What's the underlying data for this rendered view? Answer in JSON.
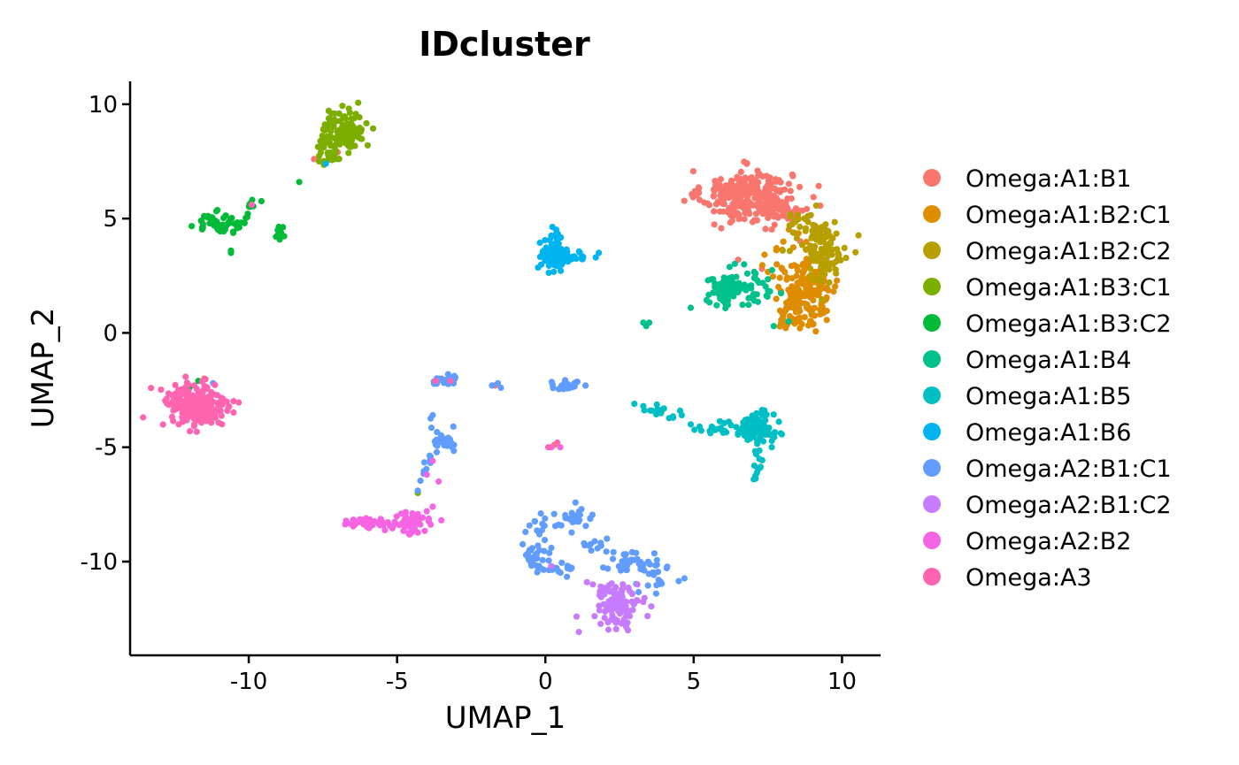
{
  "chart_data": {
    "type": "scatter",
    "title": "IDcluster",
    "xlabel": "UMAP_1",
    "ylabel": "UMAP_2",
    "xlim": [
      -14.0,
      11.3
    ],
    "ylim": [
      -14.1,
      11.0
    ],
    "xticks": [
      -10,
      -5,
      0,
      5,
      10
    ],
    "xtick_labels": [
      "-10",
      "-5",
      "0",
      "5",
      "10"
    ],
    "yticks": [
      10,
      5,
      0,
      -5,
      -10
    ],
    "ytick_labels": [
      "10",
      "5",
      "0",
      "-5",
      "-10"
    ],
    "grid": false,
    "legend_position": "right",
    "series": [
      {
        "name": "Omega:A1:B1",
        "color": "#F8766D",
        "clusters": [
          {
            "cx": 6.8,
            "cy": 6.0,
            "sx": 0.75,
            "sy": 0.55,
            "n": 280
          },
          {
            "cx": 8.0,
            "cy": 5.4,
            "sx": 0.5,
            "sy": 0.5,
            "n": 40
          }
        ],
        "points": [
          [
            -7.8,
            7.6
          ],
          [
            -7.0,
            7.9
          ],
          [
            -11.5,
            -2.0
          ],
          [
            -3.5,
            -2.0
          ],
          [
            0.3,
            -4.9
          ],
          [
            6.5,
            3.2
          ],
          [
            7.3,
            2.8
          ],
          [
            8.6,
            4.0
          ],
          [
            -1.7,
            -2.3
          ],
          [
            3.9,
            -3.5
          ],
          [
            6.0,
            2.2
          ]
        ]
      },
      {
        "name": "Omega:A1:B2:C1",
        "color": "#DE8C00",
        "clusters": [
          {
            "cx": 8.8,
            "cy": 2.0,
            "sx": 0.55,
            "sy": 0.9,
            "n": 170
          },
          {
            "cx": 8.3,
            "cy": 0.7,
            "sx": 0.25,
            "sy": 0.35,
            "n": 25
          }
        ],
        "points": [
          [
            7.8,
            3.0
          ],
          [
            9.3,
            1.2
          ]
        ]
      },
      {
        "name": "Omega:A1:B2:C2",
        "color": "#B79F00",
        "clusters": [
          {
            "cx": 9.4,
            "cy": 3.6,
            "sx": 0.4,
            "sy": 0.65,
            "n": 90
          },
          {
            "cx": 8.7,
            "cy": 4.7,
            "sx": 0.35,
            "sy": 0.3,
            "n": 30
          }
        ],
        "points": [
          [
            8.0,
            3.6
          ],
          [
            9.8,
            2.6
          ]
        ]
      },
      {
        "name": "Omega:A1:B3:C1",
        "color": "#7CAE00",
        "clusters": [
          {
            "cx": -6.8,
            "cy": 8.8,
            "sx": 0.35,
            "sy": 0.5,
            "n": 110
          },
          {
            "cx": -7.3,
            "cy": 7.9,
            "sx": 0.3,
            "sy": 0.3,
            "n": 30
          }
        ],
        "points": [
          [
            -4.3,
            -7.0
          ],
          [
            -11.3,
            -3.8
          ],
          [
            7.0,
            1.5
          ]
        ]
      },
      {
        "name": "Omega:A1:B3:C2",
        "color": "#00BA38",
        "clusters": [
          {
            "cx": -11.0,
            "cy": 4.8,
            "sx": 0.4,
            "sy": 0.22,
            "n": 55
          },
          {
            "cx": -9.9,
            "cy": 5.5,
            "sx": 0.25,
            "sy": 0.25,
            "n": 10
          },
          {
            "cx": -8.9,
            "cy": 4.4,
            "sx": 0.12,
            "sy": 0.2,
            "n": 10
          }
        ],
        "points": [
          [
            -8.3,
            6.6
          ],
          [
            -10.6,
            3.6
          ],
          [
            -10.6,
            3.5
          ],
          [
            -11.7,
            -2.1
          ],
          [
            -12.0,
            -2.4
          ],
          [
            6.5,
            1.8
          ]
        ]
      },
      {
        "name": "Omega:A1:B4",
        "color": "#00C08B",
        "clusters": [
          {
            "cx": 6.1,
            "cy": 1.9,
            "sx": 0.3,
            "sy": 0.35,
            "n": 70
          },
          {
            "cx": 6.9,
            "cy": 1.8,
            "sx": 0.4,
            "sy": 0.5,
            "n": 40
          }
        ],
        "points": [
          [
            3.3,
            0.45
          ],
          [
            3.5,
            0.45
          ],
          [
            3.4,
            0.3
          ],
          [
            4.9,
            1.1
          ],
          [
            7.7,
            0.3
          ],
          [
            8.2,
            0.5
          ],
          [
            6.7,
            3.0
          ],
          [
            3.8,
            -3.5
          ]
        ]
      },
      {
        "name": "Omega:A1:B5",
        "color": "#00BFC4",
        "clusters": [
          {
            "cx": 7.1,
            "cy": -4.2,
            "sx": 0.3,
            "sy": 0.35,
            "n": 100
          },
          {
            "cx": 7.2,
            "cy": -5.6,
            "sx": 0.08,
            "sy": 0.35,
            "n": 12
          },
          {
            "cx": 4.0,
            "cy": -3.4,
            "sx": 0.3,
            "sy": 0.12,
            "n": 15
          },
          {
            "cx": 5.8,
            "cy": -4.2,
            "sx": 0.35,
            "sy": 0.15,
            "n": 20
          }
        ],
        "points": [
          [
            3.0,
            -3.1
          ],
          [
            3.3,
            -3.2
          ],
          [
            4.6,
            -3.6
          ],
          [
            4.9,
            -4.0
          ],
          [
            5.2,
            -4.1
          ]
        ]
      },
      {
        "name": "Omega:A1:B6",
        "color": "#00B4F0",
        "clusters": [
          {
            "cx": 0.3,
            "cy": 3.4,
            "sx": 0.22,
            "sy": 0.32,
            "n": 90
          },
          {
            "cx": 0.35,
            "cy": 4.3,
            "sx": 0.1,
            "sy": 0.15,
            "n": 10
          },
          {
            "cx": 1.2,
            "cy": 3.35,
            "sx": 0.3,
            "sy": 0.08,
            "n": 15
          }
        ],
        "points": [
          [
            -7.4,
            7.4
          ],
          [
            1.8,
            3.5
          ],
          [
            1.7,
            3.3
          ]
        ]
      },
      {
        "name": "Omega:A2:B1:C1",
        "color": "#619CFF",
        "clusters": [
          {
            "cx": -3.4,
            "cy": -2.1,
            "sx": 0.25,
            "sy": 0.15,
            "n": 25
          },
          {
            "cx": 0.7,
            "cy": -2.3,
            "sx": 0.25,
            "sy": 0.1,
            "n": 25
          },
          {
            "cx": -3.3,
            "cy": -4.8,
            "sx": 0.15,
            "sy": 0.2,
            "n": 20
          },
          {
            "cx": -3.7,
            "cy": -4.6,
            "sx": 0.1,
            "sy": 0.4,
            "n": 10
          },
          {
            "cx": -4.0,
            "cy": -6.0,
            "sx": 0.15,
            "sy": 0.4,
            "n": 8
          },
          {
            "cx": 0.2,
            "cy": -8.3,
            "sx": 0.45,
            "sy": 0.25,
            "n": 20
          },
          {
            "cx": 1.1,
            "cy": -8.2,
            "sx": 0.25,
            "sy": 0.25,
            "n": 18
          },
          {
            "cx": -0.4,
            "cy": -9.8,
            "sx": 0.3,
            "sy": 0.3,
            "n": 25
          },
          {
            "cx": 0.5,
            "cy": -10.3,
            "sx": 0.4,
            "sy": 0.12,
            "n": 20
          },
          {
            "cx": 2.7,
            "cy": -10.0,
            "sx": 0.6,
            "sy": 0.25,
            "n": 30
          },
          {
            "cx": 3.7,
            "cy": -10.6,
            "sx": 0.4,
            "sy": 0.35,
            "n": 25
          },
          {
            "cx": 1.7,
            "cy": -9.2,
            "sx": 0.25,
            "sy": 0.15,
            "n": 10
          }
        ],
        "points": [
          [
            -1.6,
            -2.2
          ],
          [
            -1.8,
            -2.3
          ],
          [
            -1.5,
            -2.4
          ],
          [
            -11.2,
            -2.2
          ],
          [
            -3.8,
            -3.6
          ],
          [
            -4.3,
            -6.9
          ],
          [
            -3.1,
            -4.1
          ],
          [
            0.2,
            -9.4
          ]
        ]
      },
      {
        "name": "Omega:A2:B1:C2",
        "color": "#C77CFF",
        "clusters": [
          {
            "cx": 2.5,
            "cy": -12.1,
            "sx": 0.35,
            "sy": 0.35,
            "n": 70
          },
          {
            "cx": 2.0,
            "cy": -11.3,
            "sx": 0.35,
            "sy": 0.25,
            "n": 20
          },
          {
            "cx": 2.9,
            "cy": -11.6,
            "sx": 0.2,
            "sy": 0.3,
            "n": 10
          }
        ],
        "points": [
          [
            1.4,
            -10.9
          ],
          [
            1.6,
            -11.0
          ],
          [
            3.1,
            -11.0
          ],
          [
            0.2,
            -10.2
          ]
        ]
      },
      {
        "name": "Omega:A2:B2",
        "color": "#F564E3",
        "clusters": [
          {
            "cx": -4.5,
            "cy": -8.3,
            "sx": 0.4,
            "sy": 0.25,
            "n": 55
          },
          {
            "cx": -6.0,
            "cy": -8.3,
            "sx": 0.45,
            "sy": 0.12,
            "n": 30
          }
        ],
        "points": [
          [
            -4.0,
            -7.8
          ],
          [
            -3.8,
            -7.6
          ],
          [
            -3.6,
            -6.5
          ],
          [
            -4.0,
            -6.2
          ],
          [
            -3.8,
            -5.6
          ],
          [
            0.5,
            -5.0
          ],
          [
            0.2,
            -5.0
          ]
        ]
      },
      {
        "name": "Omega:A3",
        "color": "#FF64B0",
        "clusters": [
          {
            "cx": -11.8,
            "cy": -3.2,
            "sx": 0.55,
            "sy": 0.5,
            "n": 220
          }
        ],
        "points": [
          [
            -9.9,
            5.6
          ],
          [
            -3.7,
            -2.1
          ],
          [
            -3.2,
            -2.1
          ],
          [
            0.4,
            -4.8
          ],
          [
            0.1,
            -5.0
          ]
        ]
      }
    ]
  }
}
